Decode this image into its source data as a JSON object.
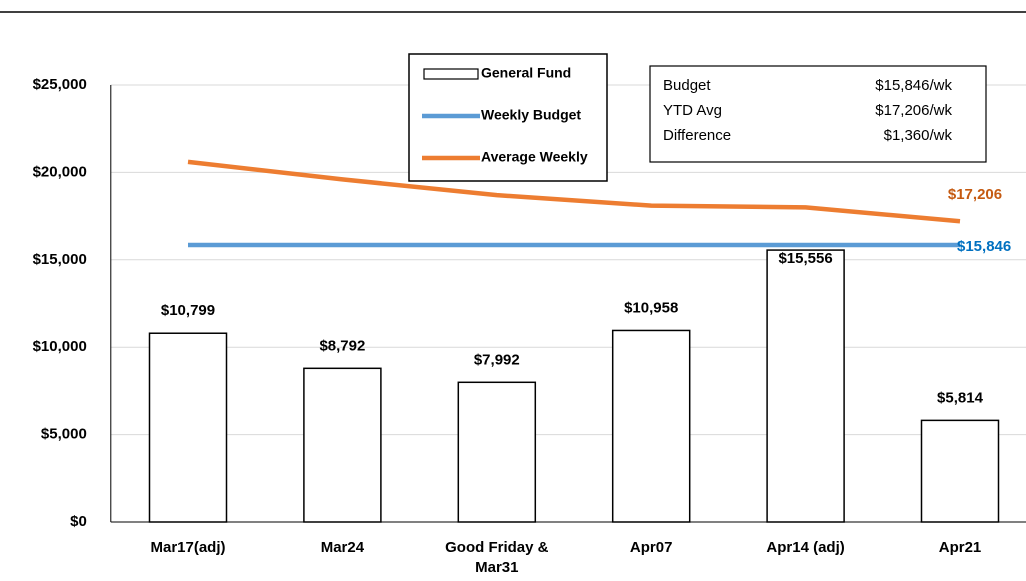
{
  "chart_data": {
    "type": "bar",
    "categories": [
      "Mar17(adj)",
      "Mar24",
      "Good Friday & Mar31",
      "Apr07",
      "Apr14 (adj)",
      "Apr21"
    ],
    "series": [
      {
        "name": "General Fund",
        "kind": "bar",
        "color": "#ffffff",
        "stroke": "#000000",
        "values": [
          10799,
          8792,
          7992,
          10958,
          15556,
          5814
        ],
        "value_labels": [
          "$10,799",
          "$8,792",
          "$7,992",
          "$10,958",
          "$15,556",
          "$5,814"
        ]
      },
      {
        "name": "Weekly Budget",
        "kind": "line",
        "color": "#5B9BD5",
        "label_color": "#0070C0",
        "values": [
          15846,
          15846,
          15846,
          15846,
          15846,
          15846
        ],
        "value_labels": [
          null,
          null,
          null,
          null,
          null,
          "$15,846"
        ]
      },
      {
        "name": "Average Weekly",
        "kind": "line",
        "color": "#ED7D31",
        "label_color": "#C55A11",
        "values": [
          20600,
          19600,
          18700,
          18100,
          18000,
          17206
        ],
        "value_labels": [
          null,
          null,
          null,
          null,
          null,
          "$17,206"
        ]
      }
    ],
    "ylim": [
      0,
      25000
    ],
    "yticks": [
      {
        "value": 0,
        "label": "$0"
      },
      {
        "value": 5000,
        "label": "$5,000"
      },
      {
        "value": 10000,
        "label": "$10,000"
      },
      {
        "value": 15000,
        "label": "$15,000"
      },
      {
        "value": 20000,
        "label": "$20,000"
      },
      {
        "value": 25000,
        "label": "$25,000"
      }
    ],
    "grid": true,
    "info_box": {
      "rows": [
        [
          "Budget",
          "$15,846/wk"
        ],
        [
          "YTD Avg",
          "$17,206/wk"
        ],
        [
          "Difference",
          "$1,360/wk"
        ]
      ]
    }
  }
}
